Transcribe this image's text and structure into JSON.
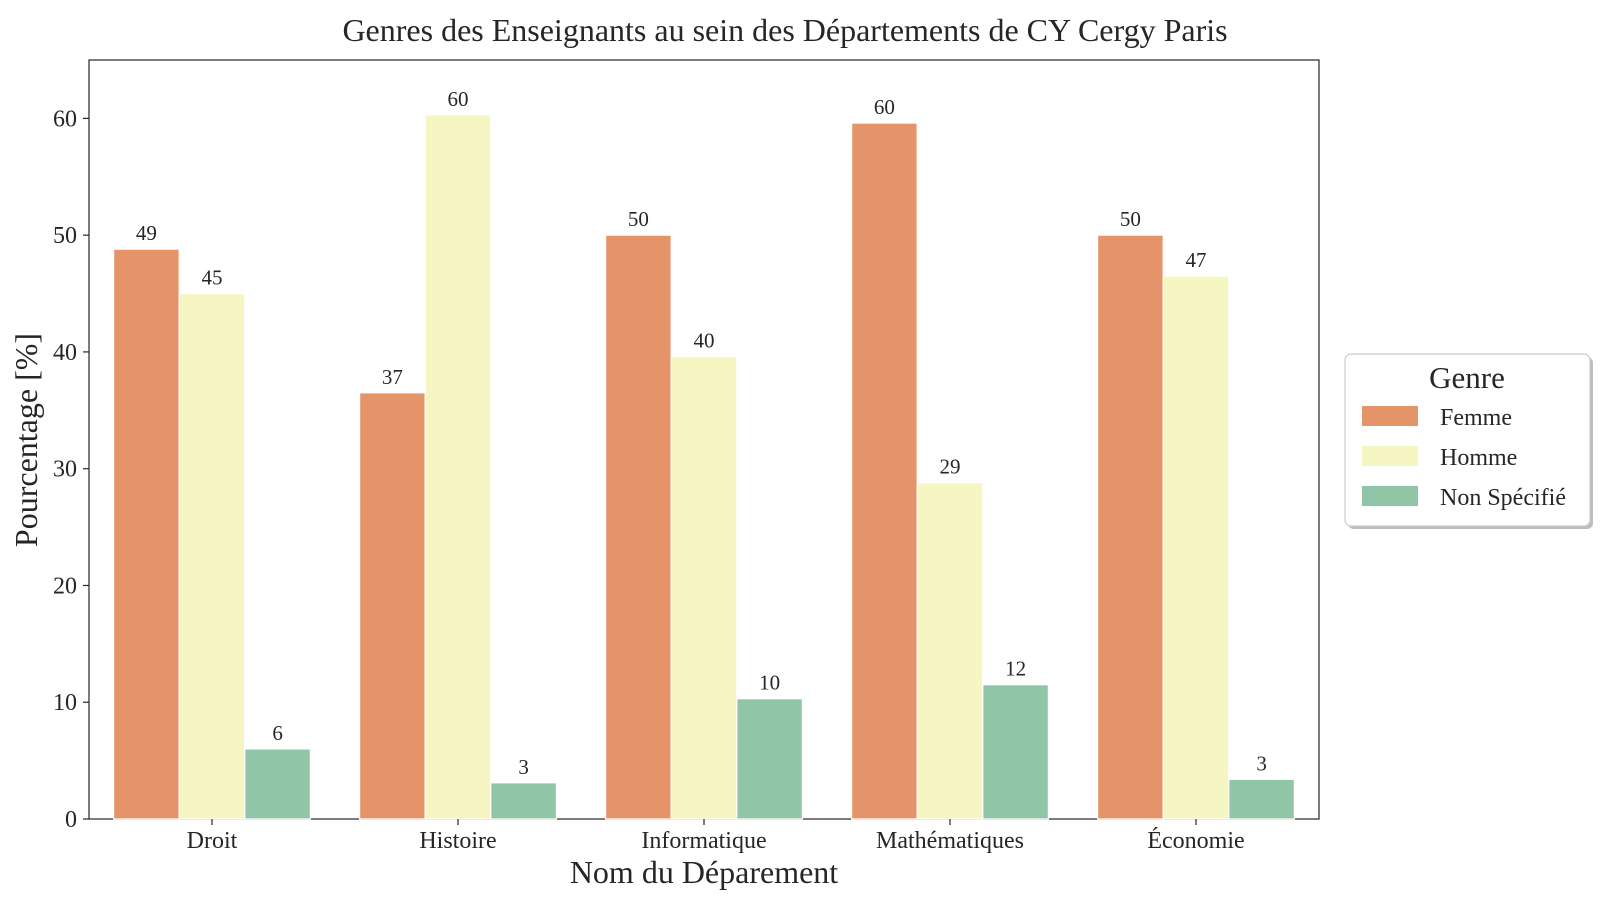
{
  "chart_data": {
    "type": "bar",
    "title": "Genres des Enseignants au sein des Départements de CY Cergy Paris",
    "xlabel": "Nom du Déparement",
    "ylabel": "Pourcentage [%]",
    "ylim": [
      0,
      65
    ],
    "yticks": [
      0,
      10,
      20,
      30,
      40,
      50,
      60
    ],
    "grid": false,
    "categories": [
      "Droit",
      "Histoire",
      "Informatique",
      "Mathématiques",
      "Économie"
    ],
    "series": [
      {
        "name": "Femme",
        "color": "#e5946a",
        "values": [
          48.8,
          36.5,
          50.0,
          59.6,
          50.0
        ],
        "labels": [
          "49",
          "37",
          "50",
          "60",
          "50"
        ]
      },
      {
        "name": "Homme",
        "color": "#f6f6c3",
        "values": [
          45.0,
          60.3,
          39.6,
          28.8,
          46.5
        ],
        "labels": [
          "45",
          "60",
          "40",
          "29",
          "47"
        ]
      },
      {
        "name": "Non Spécifié",
        "color": "#90c6a7",
        "values": [
          6.0,
          3.1,
          10.3,
          11.5,
          3.4
        ],
        "labels": [
          "6",
          "3",
          "10",
          "12",
          "3"
        ]
      }
    ],
    "legend": {
      "title": "Genre",
      "position": "right"
    }
  }
}
